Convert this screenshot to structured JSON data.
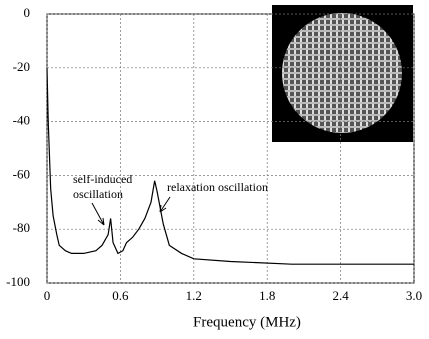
{
  "chart_data": {
    "type": "line",
    "x_label": "Frequency (MHz)",
    "annotations": [
      "self-induced",
      "oscillation",
      "relaxation oscillation"
    ],
    "x": [
      0,
      0.01,
      0.03,
      0.05,
      0.08,
      0.1,
      0.15,
      0.2,
      0.3,
      0.4,
      0.45,
      0.5,
      0.52,
      0.54,
      0.58,
      0.62,
      0.65,
      0.7,
      0.75,
      0.8,
      0.85,
      0.88,
      0.9,
      0.95,
      1.0,
      1.1,
      1.2,
      1.5,
      2.0,
      2.5,
      3.0
    ],
    "series": [
      {
        "color": "#000000",
        "values": [
          -20,
          -40,
          -65,
          -75,
          -82,
          -86,
          -88,
          -89,
          -89,
          -88,
          -86,
          -82,
          -76,
          -85,
          -89,
          -88,
          -85,
          -83,
          -80,
          -76,
          -70,
          -62,
          -66,
          -78,
          -86,
          -89,
          -91,
          -92,
          -93,
          -93,
          -93
        ]
      }
    ],
    "xlim": [
      0,
      3
    ],
    "ylim": [
      -100,
      0
    ],
    "xticks": [
      0,
      0.6,
      1.2,
      1.8,
      2.4,
      {
        "value": 3,
        "label": "3.0"
      }
    ],
    "yticks": [
      0,
      -20,
      -40,
      -60,
      -80,
      -100
    ],
    "grid": true
  }
}
